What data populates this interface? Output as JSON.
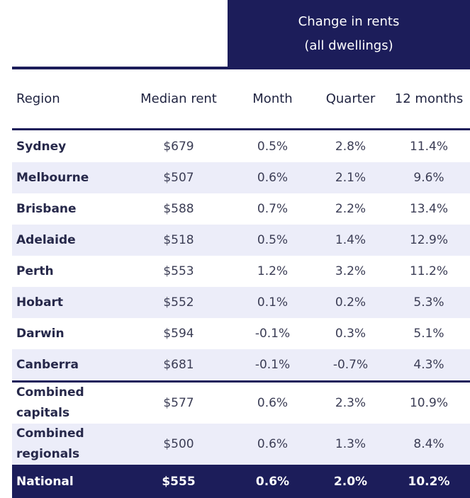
{
  "group_header": {
    "line1": "Change in rents",
    "line2": "(all dwellings)"
  },
  "columns": {
    "region": "Region",
    "median": "Median rent",
    "month": "Month",
    "quarter": "Quarter",
    "twelve": "12 months"
  },
  "rows": [
    {
      "region": "Sydney",
      "median": "$679",
      "month": "0.5%",
      "quarter": "2.8%",
      "twelve": "11.4%"
    },
    {
      "region": "Melbourne",
      "median": "$507",
      "month": "0.6%",
      "quarter": "2.1%",
      "twelve": "9.6%"
    },
    {
      "region": "Brisbane",
      "median": "$588",
      "month": "0.7%",
      "quarter": "2.2%",
      "twelve": "13.4%"
    },
    {
      "region": "Adelaide",
      "median": "$518",
      "month": "0.5%",
      "quarter": "1.4%",
      "twelve": "12.9%"
    },
    {
      "region": "Perth",
      "median": "$553",
      "month": "1.2%",
      "quarter": "3.2%",
      "twelve": "11.2%"
    },
    {
      "region": "Hobart",
      "median": "$552",
      "month": "0.1%",
      "quarter": "0.2%",
      "twelve": "5.3%"
    },
    {
      "region": "Darwin",
      "median": "$594",
      "month": "-0.1%",
      "quarter": "0.3%",
      "twelve": "5.1%"
    },
    {
      "region": "Canberra",
      "median": "$681",
      "month": "-0.1%",
      "quarter": "-0.7%",
      "twelve": "4.3%"
    }
  ],
  "combined": [
    {
      "region_l1": "Combined",
      "region_l2": "capitals",
      "median": "$577",
      "month": "0.6%",
      "quarter": "2.3%",
      "twelve": "10.9%"
    },
    {
      "region_l1": "Combined",
      "region_l2": "regionals",
      "median": "$500",
      "month": "0.6%",
      "quarter": "1.3%",
      "twelve": "8.4%"
    }
  ],
  "national": {
    "region": "National",
    "median": "$555",
    "month": "0.6%",
    "quarter": "2.0%",
    "twelve": "10.2%"
  },
  "colors": {
    "navy": "#1c1d5a",
    "stripe": "#ecedf9"
  }
}
